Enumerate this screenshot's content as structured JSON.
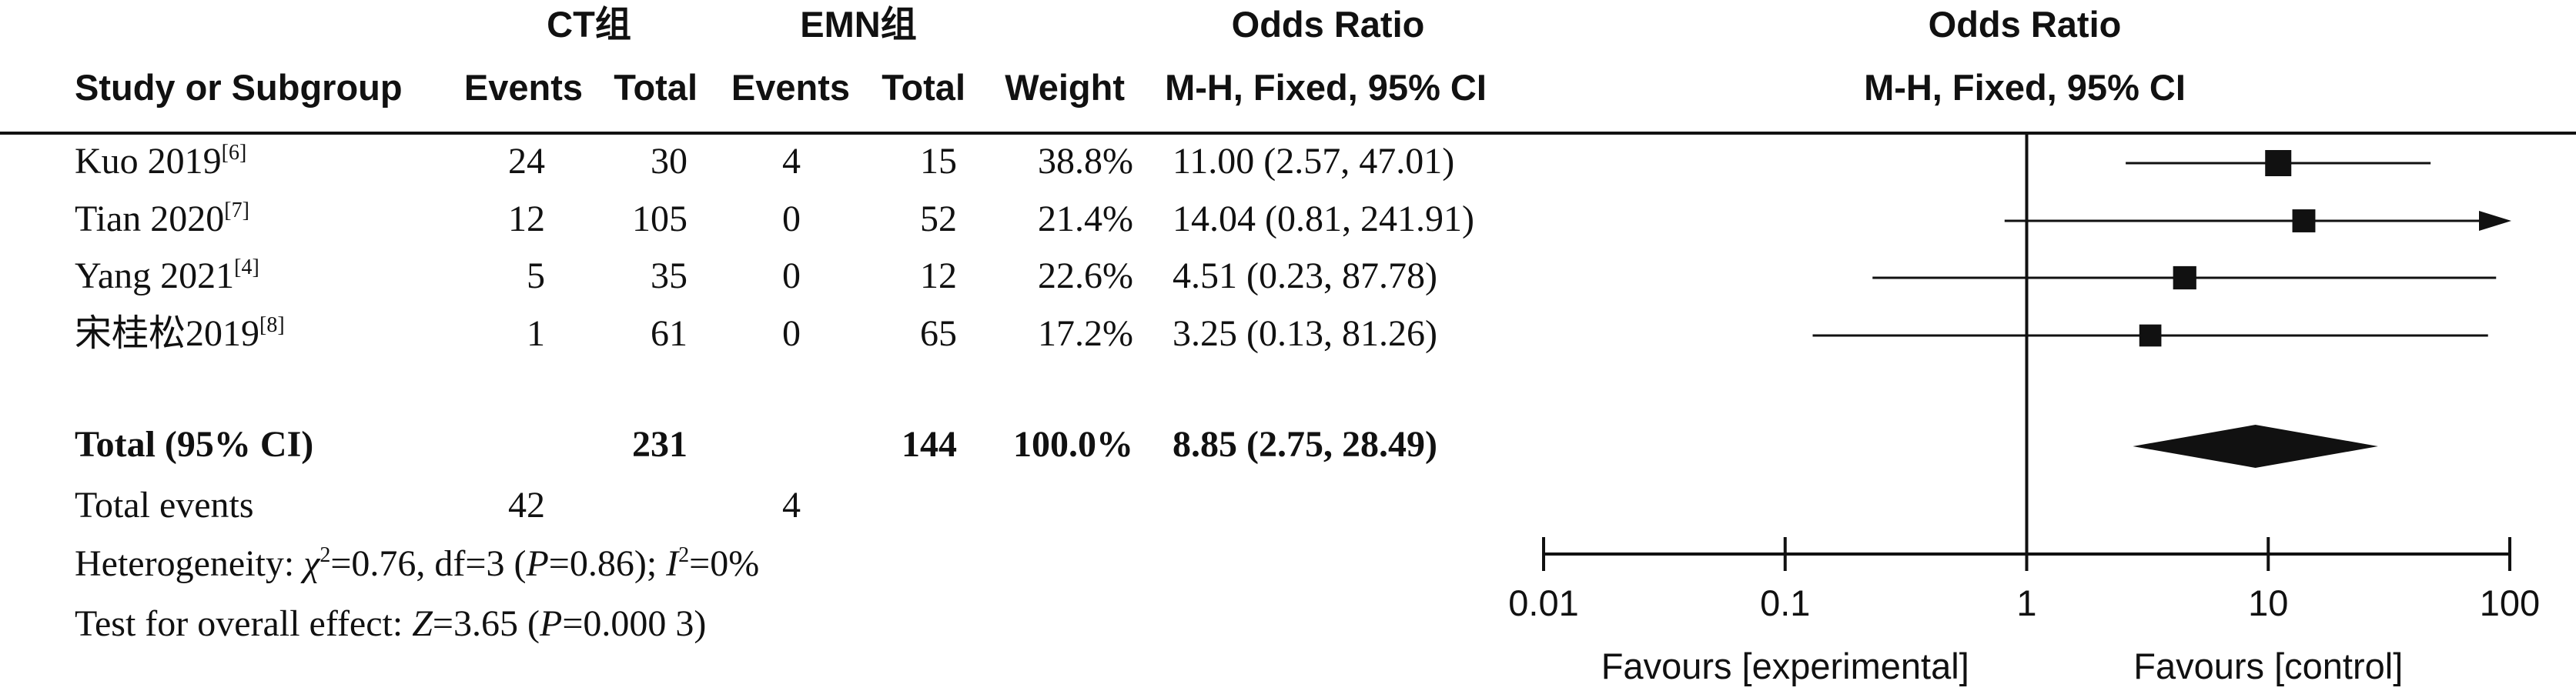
{
  "header": {
    "group1": "CT组",
    "group2": "EMN组",
    "or_title": "Odds Ratio",
    "study_col": "Study or Subgroup",
    "events1": "Events",
    "total1": "Total",
    "events2": "Events",
    "total2": "Total",
    "weight": "Weight",
    "method": "M-H, Fixed, 95% CI",
    "plot_title": "Odds Ratio",
    "plot_method": "M-H, Fixed, 95% CI"
  },
  "studies": [
    {
      "name": "Kuo 2019",
      "ref": "[6]",
      "events1": "24",
      "total1": "30",
      "events2": "4",
      "total2": "15",
      "weight": "38.8%",
      "ci_text": "11.00 (2.57, 47.01)"
    },
    {
      "name": "Tian 2020",
      "ref": "[7]",
      "events1": "12",
      "total1": "105",
      "events2": "0",
      "total2": "52",
      "weight": "21.4%",
      "ci_text": "14.04 (0.81, 241.91)"
    },
    {
      "name": "Yang 2021",
      "ref": "[4]",
      "events1": "5",
      "total1": "35",
      "events2": "0",
      "total2": "12",
      "weight": "22.6%",
      "ci_text": "4.51 (0.23, 87.78)"
    },
    {
      "name": "宋桂松2019",
      "ref": "[8]",
      "events1": "1",
      "total1": "61",
      "events2": "0",
      "total2": "65",
      "weight": "17.2%",
      "ci_text": "3.25 (0.13, 81.26)"
    }
  ],
  "total_row": {
    "label": "Total (95% CI)",
    "total1": "231",
    "total2": "144",
    "weight": "100.0%",
    "ci_text": "8.85 (2.75, 28.49)"
  },
  "events_row": {
    "label": "Total events",
    "events1": "42",
    "events2": "4"
  },
  "heterogeneity": {
    "prefix": "Heterogeneity: ",
    "chi_symbol": "χ",
    "chi_sup": "2",
    "chi_value": "=0.76, df=3 (",
    "p_symbol": "P",
    "p_value": "=0.86); ",
    "i_symbol": "I",
    "i_sup": "2",
    "i_value": "=0%"
  },
  "overall": {
    "prefix": "Test for overall effect: ",
    "z_symbol": "Z",
    "z_value": "=3.65 (",
    "p_symbol": "P",
    "p_value": "=0.000 3)"
  },
  "chart_data": {
    "type": "forest",
    "x_scale": "log",
    "xlim": [
      0.01,
      100
    ],
    "ticks": [
      0.01,
      0.1,
      1,
      10,
      100
    ],
    "tick_labels": [
      "0.01",
      "0.1",
      "1",
      "10",
      "100"
    ],
    "null_line": 1,
    "left_label": "Favours [experimental]",
    "right_label": "Favours [control]",
    "series": [
      {
        "or": 11.0,
        "lower": 2.57,
        "upper": 47.01,
        "weight": 38.8
      },
      {
        "or": 14.04,
        "lower": 0.81,
        "upper": 241.91,
        "weight": 21.4
      },
      {
        "or": 4.51,
        "lower": 0.23,
        "upper": 87.78,
        "weight": 22.6
      },
      {
        "or": 3.25,
        "lower": 0.13,
        "upper": 81.26,
        "weight": 17.2
      }
    ],
    "pooled": {
      "or": 8.85,
      "lower": 2.75,
      "upper": 28.49
    },
    "colors": {
      "ink": "#111111"
    }
  }
}
